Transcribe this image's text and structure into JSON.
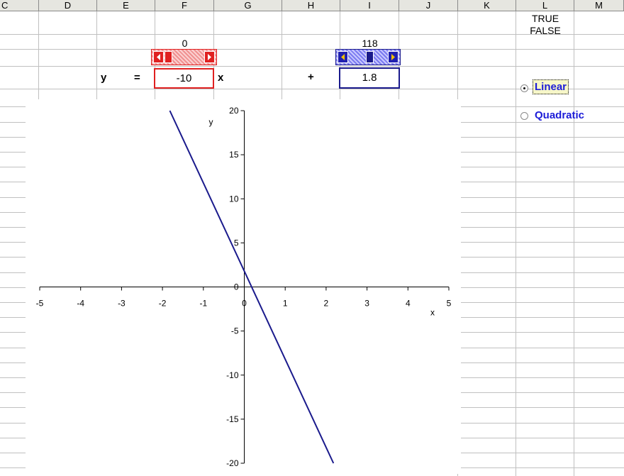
{
  "columns": [
    "C",
    "D",
    "E",
    "F",
    "G",
    "H",
    "I",
    "J",
    "K",
    "L",
    "M"
  ],
  "cells": {
    "l_true": "TRUE",
    "l_false": "FALSE",
    "slope_scroll_value": "0",
    "intercept_scroll_value": "118",
    "y_label": "y",
    "equals_label": "=",
    "x_label": "x",
    "plus_label": "+"
  },
  "inputs": {
    "slope": "-10",
    "intercept": "1.8"
  },
  "options": {
    "linear": "Linear",
    "quadratic": "Quadratic",
    "selected": "linear"
  },
  "colors": {
    "slope_accent": "#e02020",
    "intercept_accent": "#1a1a8c",
    "line": "#1a1a8c",
    "option_text": "#1c1cd8"
  },
  "chart_data": {
    "type": "line",
    "title": "",
    "xlabel": "x",
    "ylabel": "y",
    "xlim": [
      -5,
      5
    ],
    "ylim": [
      -20,
      20
    ],
    "xticks": [
      "-5",
      "-4",
      "-3",
      "-2",
      "-1",
      "0",
      "1",
      "2",
      "3",
      "4",
      "5"
    ],
    "yticks": [
      "20",
      "15",
      "10",
      "5",
      "0",
      "-5",
      "-10",
      "-15",
      "-20"
    ],
    "grid": false,
    "series": [
      {
        "x": [
          -1.82,
          2.18
        ],
        "y": [
          20,
          -20
        ]
      }
    ]
  }
}
